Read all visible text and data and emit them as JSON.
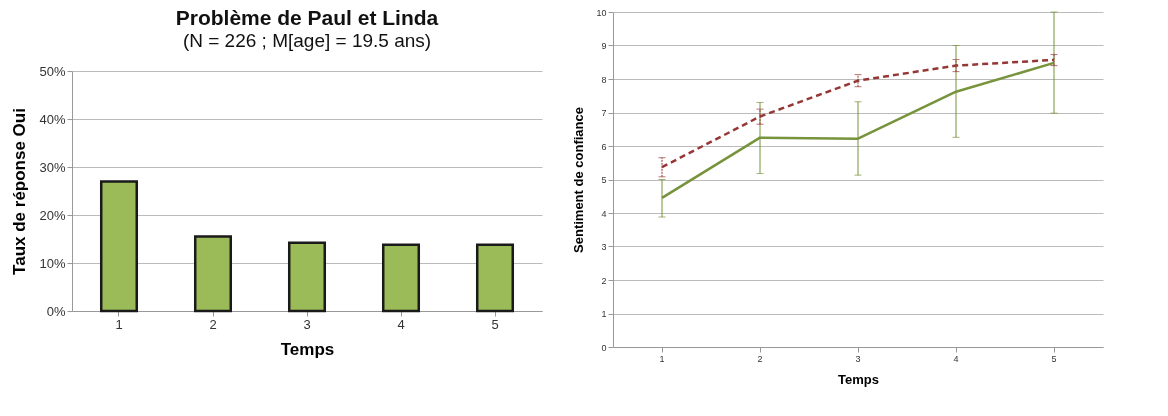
{
  "chart_data": [
    {
      "type": "bar",
      "title": "Problème de Paul et Linda",
      "subtitle": "(N = 226 ; M[age] = 19.5 ans)",
      "xlabel": "Temps",
      "ylabel": "Taux de réponse Oui",
      "categories": [
        "1",
        "2",
        "3",
        "4",
        "5"
      ],
      "values": [
        27,
        15.5,
        14.2,
        13.8,
        13.8
      ],
      "color": "#9bbb59",
      "ylim": [
        0,
        50
      ],
      "yticks": [
        {
          "value": 0,
          "label": "0%"
        },
        {
          "value": 10,
          "label": "10%"
        },
        {
          "value": 20,
          "label": "20%"
        },
        {
          "value": 30,
          "label": "30%"
        },
        {
          "value": 40,
          "label": "40%"
        },
        {
          "value": 50,
          "label": "50%"
        }
      ],
      "grid": "y"
    },
    {
      "type": "line",
      "xlabel": "Temps",
      "ylabel": "Sentiment de confiance",
      "categories": [
        "1",
        "2",
        "3",
        "4",
        "5"
      ],
      "series": [
        {
          "color": "#77933c",
          "line_style": "solid",
          "values": [
            4.45,
            6.25,
            6.22,
            7.62,
            8.48
          ],
          "errors": [
            [
              3.88,
              5.0
            ],
            [
              5.18,
              7.3
            ],
            [
              5.13,
              7.32
            ],
            [
              6.26,
              9.0
            ],
            [
              6.98,
              10.0
            ]
          ]
        },
        {
          "color": "#953735",
          "line_style": "dashed",
          "values": [
            5.37,
            6.88,
            7.95,
            8.4,
            8.57
          ],
          "errors": [
            [
              5.08,
              5.65
            ],
            [
              6.65,
              7.1
            ],
            [
              7.77,
              8.13
            ],
            [
              8.22,
              8.58
            ],
            [
              8.4,
              8.73
            ]
          ]
        }
      ],
      "ylim": [
        0,
        10
      ],
      "yticks": [
        0,
        1,
        2,
        3,
        4,
        5,
        6,
        7,
        8,
        9,
        10
      ],
      "grid": "y",
      "marker": "none"
    }
  ]
}
